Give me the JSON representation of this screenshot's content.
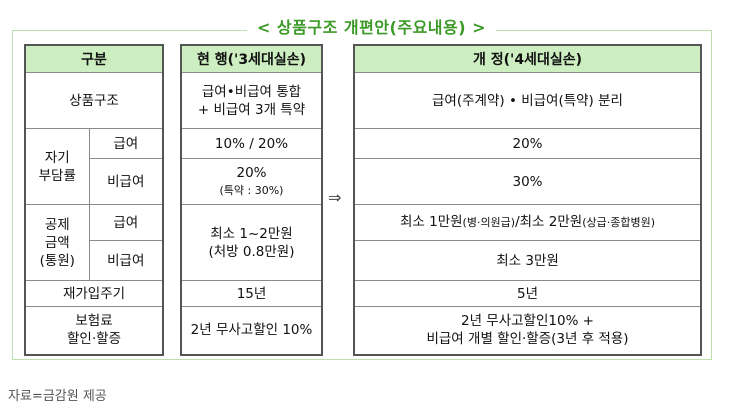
{
  "title": "< 상품구조  개편안(주요내용) >",
  "source": "자료=금감원 제공",
  "arrow": "⇒",
  "colors": {
    "accent_green": "#3c9a28",
    "header_bg": "#cdeec0",
    "frame_border": "#b9e0ad"
  },
  "left_table": {
    "header": "구분",
    "rows": {
      "product_structure": "상품구조",
      "self_burden": "자기\n부담률",
      "deduction": "공제\n금액\n(통원)",
      "coverage_label": "급여",
      "non_coverage_label": "비급여",
      "rejoin_period": "재가입주기",
      "premium_discount": "보험료\n할인·할증"
    }
  },
  "current": {
    "header": "현  행('3세대실손)",
    "product_structure": "급여•비급여 통합\n+ 비급여 3개 특약",
    "self_burden_coverage": "10% / 20%",
    "self_burden_non_coverage": "20%",
    "self_burden_non_coverage_note": "(특약 : 30%)",
    "deduction": "최소 1~2만원\n(처방 0.8만원)",
    "rejoin_period": "15년",
    "premium_discount": "2년 무사고할인 10%"
  },
  "revised": {
    "header": "개  정('4세대실손)",
    "product_structure": "급여(주계약) • 비급여(특약) 분리",
    "self_burden_coverage": "20%",
    "self_burden_non_coverage": "30%",
    "deduction_coverage_a": "최소 1만원",
    "deduction_coverage_a_note": "(병·의원급)",
    "deduction_coverage_b": "/최소 2만원",
    "deduction_coverage_b_note": "(상급·종합병원)",
    "deduction_non_coverage": "최소 3만원",
    "rejoin_period": "5년",
    "premium_discount": "2년  무사고할인10%  +\n비급여 개별 할인·할증(3년 후 적용)"
  }
}
